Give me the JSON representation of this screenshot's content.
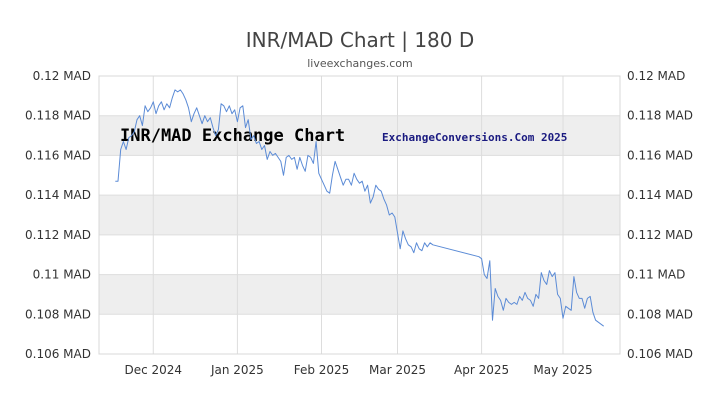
{
  "chart_data": {
    "type": "line",
    "title": "INR/MAD Chart | 180 D",
    "subtitle": "liveexchanges.com",
    "watermark_left": "INR/MAD Exchange Chart",
    "watermark_right": "ExchangeConversions.Com 2025",
    "xlabel": "",
    "ylabel": "",
    "unit": "MAD",
    "ylim": [
      0.106,
      0.12
    ],
    "y_ticks": [
      {
        "value": 0.12,
        "label": "0.12 MAD"
      },
      {
        "value": 0.118,
        "label": "0.118 MAD"
      },
      {
        "value": 0.116,
        "label": "0.116 MAD"
      },
      {
        "value": 0.114,
        "label": "0.114 MAD"
      },
      {
        "value": 0.112,
        "label": "0.112 MAD"
      },
      {
        "value": 0.11,
        "label": "0.11 MAD"
      },
      {
        "value": 0.108,
        "label": "0.108 MAD"
      },
      {
        "value": 0.106,
        "label": "0.106 MAD"
      }
    ],
    "x_range": [
      "2024-11-11",
      "2025-05-22"
    ],
    "x_ticks": [
      {
        "date": "2024-12-01",
        "label": "Dec 2024"
      },
      {
        "date": "2025-01-01",
        "label": "Jan 2025"
      },
      {
        "date": "2025-02-01",
        "label": "Feb 2025"
      },
      {
        "date": "2025-03-01",
        "label": "Mar 2025"
      },
      {
        "date": "2025-04-01",
        "label": "Apr 2025"
      },
      {
        "date": "2025-05-01",
        "label": "May 2025"
      }
    ],
    "grid": true,
    "line_color": "#5b8bd6",
    "band_color": "#eeeeee",
    "grid_color": "#dddddd",
    "series": [
      {
        "points": [
          [
            "2024-11-17",
            0.1147
          ],
          [
            "2024-11-18",
            0.1147
          ],
          [
            "2024-11-19",
            0.1163
          ],
          [
            "2024-11-20",
            0.1167
          ],
          [
            "2024-11-21",
            0.1163
          ],
          [
            "2024-11-22",
            0.1169
          ],
          [
            "2024-11-23",
            0.117
          ],
          [
            "2024-11-24",
            0.1172
          ],
          [
            "2024-11-25",
            0.1178
          ],
          [
            "2024-11-26",
            0.118
          ],
          [
            "2024-11-27",
            0.1175
          ],
          [
            "2024-11-28",
            0.1185
          ],
          [
            "2024-11-29",
            0.1182
          ],
          [
            "2024-11-30",
            0.1184
          ],
          [
            "2024-12-01",
            0.1187
          ],
          [
            "2024-12-02",
            0.1181
          ],
          [
            "2024-12-03",
            0.1185
          ],
          [
            "2024-12-04",
            0.1187
          ],
          [
            "2024-12-05",
            0.1183
          ],
          [
            "2024-12-06",
            0.1186
          ],
          [
            "2024-12-07",
            0.1184
          ],
          [
            "2024-12-08",
            0.1189
          ],
          [
            "2024-12-09",
            0.1193
          ],
          [
            "2024-12-10",
            0.1192
          ],
          [
            "2024-12-11",
            0.1193
          ],
          [
            "2024-12-12",
            0.1191
          ],
          [
            "2024-12-13",
            0.1188
          ],
          [
            "2024-12-14",
            0.1184
          ],
          [
            "2024-12-15",
            0.1177
          ],
          [
            "2024-12-16",
            0.1181
          ],
          [
            "2024-12-17",
            0.1184
          ],
          [
            "2024-12-18",
            0.118
          ],
          [
            "2024-12-19",
            0.1176
          ],
          [
            "2024-12-20",
            0.118
          ],
          [
            "2024-12-21",
            0.1177
          ],
          [
            "2024-12-22",
            0.1179
          ],
          [
            "2024-12-23",
            0.1174
          ],
          [
            "2024-12-24",
            0.117
          ],
          [
            "2024-12-25",
            0.1173
          ],
          [
            "2024-12-26",
            0.1186
          ],
          [
            "2024-12-27",
            0.1185
          ],
          [
            "2024-12-28",
            0.1182
          ],
          [
            "2024-12-29",
            0.1185
          ],
          [
            "2024-12-30",
            0.1181
          ],
          [
            "2024-12-31",
            0.1183
          ],
          [
            "2025-01-01",
            0.1177
          ],
          [
            "2025-01-02",
            0.1184
          ],
          [
            "2025-01-03",
            0.1185
          ],
          [
            "2025-01-04",
            0.1174
          ],
          [
            "2025-01-05",
            0.1178
          ],
          [
            "2025-01-06",
            0.1168
          ],
          [
            "2025-01-07",
            0.117
          ],
          [
            "2025-01-08",
            0.1166
          ],
          [
            "2025-01-09",
            0.1167
          ],
          [
            "2025-01-10",
            0.1163
          ],
          [
            "2025-01-11",
            0.1165
          ],
          [
            "2025-01-12",
            0.1158
          ],
          [
            "2025-01-13",
            0.1162
          ],
          [
            "2025-01-14",
            0.116
          ],
          [
            "2025-01-15",
            0.1161
          ],
          [
            "2025-01-16",
            0.1159
          ],
          [
            "2025-01-17",
            0.1157
          ],
          [
            "2025-01-18",
            0.115
          ],
          [
            "2025-01-19",
            0.1159
          ],
          [
            "2025-01-20",
            0.116
          ],
          [
            "2025-01-21",
            0.1158
          ],
          [
            "2025-01-22",
            0.1159
          ],
          [
            "2025-01-23",
            0.1153
          ],
          [
            "2025-01-24",
            0.1159
          ],
          [
            "2025-01-25",
            0.1155
          ],
          [
            "2025-01-26",
            0.1152
          ],
          [
            "2025-01-27",
            0.116
          ],
          [
            "2025-01-28",
            0.1159
          ],
          [
            "2025-01-29",
            0.1156
          ],
          [
            "2025-01-30",
            0.1167
          ],
          [
            "2025-01-31",
            0.1151
          ],
          [
            "2025-02-01",
            0.1148
          ],
          [
            "2025-02-02",
            0.1145
          ],
          [
            "2025-02-03",
            0.1142
          ],
          [
            "2025-02-04",
            0.1141
          ],
          [
            "2025-02-05",
            0.115
          ],
          [
            "2025-02-06",
            0.1157
          ],
          [
            "2025-02-07",
            0.1153
          ],
          [
            "2025-02-08",
            0.1149
          ],
          [
            "2025-02-09",
            0.1145
          ],
          [
            "2025-02-10",
            0.1148
          ],
          [
            "2025-02-11",
            0.1148
          ],
          [
            "2025-02-12",
            0.1145
          ],
          [
            "2025-02-13",
            0.1151
          ],
          [
            "2025-02-14",
            0.1148
          ],
          [
            "2025-02-15",
            0.1146
          ],
          [
            "2025-02-16",
            0.1147
          ],
          [
            "2025-02-17",
            0.1142
          ],
          [
            "2025-02-18",
            0.1145
          ],
          [
            "2025-02-19",
            0.1136
          ],
          [
            "2025-02-20",
            0.1139
          ],
          [
            "2025-02-21",
            0.1145
          ],
          [
            "2025-02-22",
            0.1143
          ],
          [
            "2025-02-23",
            0.1142
          ],
          [
            "2025-02-24",
            0.1138
          ],
          [
            "2025-02-25",
            0.1135
          ],
          [
            "2025-02-26",
            0.113
          ],
          [
            "2025-02-27",
            0.1131
          ],
          [
            "2025-02-28",
            0.1129
          ],
          [
            "2025-03-01",
            0.1121
          ],
          [
            "2025-03-02",
            0.1113
          ],
          [
            "2025-03-03",
            0.1122
          ],
          [
            "2025-03-04",
            0.1118
          ],
          [
            "2025-03-05",
            0.1115
          ],
          [
            "2025-03-06",
            0.1114
          ],
          [
            "2025-03-07",
            0.1111
          ],
          [
            "2025-03-08",
            0.1116
          ],
          [
            "2025-03-09",
            0.1113
          ],
          [
            "2025-03-10",
            0.1112
          ],
          [
            "2025-03-11",
            0.1116
          ],
          [
            "2025-03-12",
            0.1114
          ],
          [
            "2025-03-13",
            0.1116
          ],
          [
            "2025-03-14",
            0.1115
          ],
          [
            "2025-03-31",
            0.1109
          ],
          [
            "2025-04-01",
            0.1108
          ],
          [
            "2025-04-02",
            0.11
          ],
          [
            "2025-04-03",
            0.1098
          ],
          [
            "2025-04-04",
            0.1107
          ],
          [
            "2025-04-05",
            0.1077
          ],
          [
            "2025-04-06",
            0.1093
          ],
          [
            "2025-04-07",
            0.1089
          ],
          [
            "2025-04-08",
            0.1087
          ],
          [
            "2025-04-09",
            0.1082
          ],
          [
            "2025-04-10",
            0.1088
          ],
          [
            "2025-04-11",
            0.1086
          ],
          [
            "2025-04-12",
            0.1085
          ],
          [
            "2025-04-13",
            0.1086
          ],
          [
            "2025-04-14",
            0.1085
          ],
          [
            "2025-04-15",
            0.1089
          ],
          [
            "2025-04-16",
            0.1087
          ],
          [
            "2025-04-17",
            0.1091
          ],
          [
            "2025-04-18",
            0.1088
          ],
          [
            "2025-04-19",
            0.1087
          ],
          [
            "2025-04-20",
            0.1084
          ],
          [
            "2025-04-21",
            0.109
          ],
          [
            "2025-04-22",
            0.1088
          ],
          [
            "2025-04-23",
            0.1101
          ],
          [
            "2025-04-24",
            0.1097
          ],
          [
            "2025-04-25",
            0.1095
          ],
          [
            "2025-04-26",
            0.1102
          ],
          [
            "2025-04-27",
            0.1099
          ],
          [
            "2025-04-28",
            0.1101
          ],
          [
            "2025-04-29",
            0.109
          ],
          [
            "2025-04-30",
            0.1088
          ],
          [
            "2025-05-01",
            0.1078
          ],
          [
            "2025-05-02",
            0.1084
          ],
          [
            "2025-05-03",
            0.1083
          ],
          [
            "2025-05-04",
            0.1082
          ],
          [
            "2025-05-05",
            0.1099
          ],
          [
            "2025-05-06",
            0.1091
          ],
          [
            "2025-05-07",
            0.1088
          ],
          [
            "2025-05-08",
            0.1088
          ],
          [
            "2025-05-09",
            0.1083
          ],
          [
            "2025-05-10",
            0.1088
          ],
          [
            "2025-05-11",
            0.1089
          ],
          [
            "2025-05-12",
            0.1081
          ],
          [
            "2025-05-13",
            0.1077
          ],
          [
            "2025-05-14",
            0.1076
          ],
          [
            "2025-05-15",
            0.1075
          ],
          [
            "2025-05-16",
            0.1074
          ]
        ]
      }
    ]
  }
}
